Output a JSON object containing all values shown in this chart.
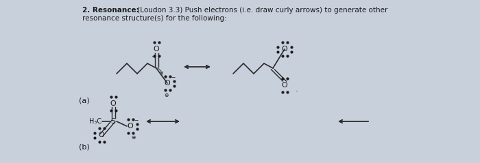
{
  "bg_color": "#c8d0dc",
  "title_bold": "2. Resonance:",
  "title_normal": " (Loudon 3.3) Push electrons (i.e. draw curly arrows) to generate other",
  "title_line2": "resonance structure(s) for the following:",
  "label_a": "(a)",
  "label_b": "(b)",
  "text_color": "#1a1a1a",
  "arrow_color": "#2a2a2a",
  "struct_color": "#2a2a2a",
  "figsize": [
    7.0,
    2.39
  ],
  "dpi": 100
}
